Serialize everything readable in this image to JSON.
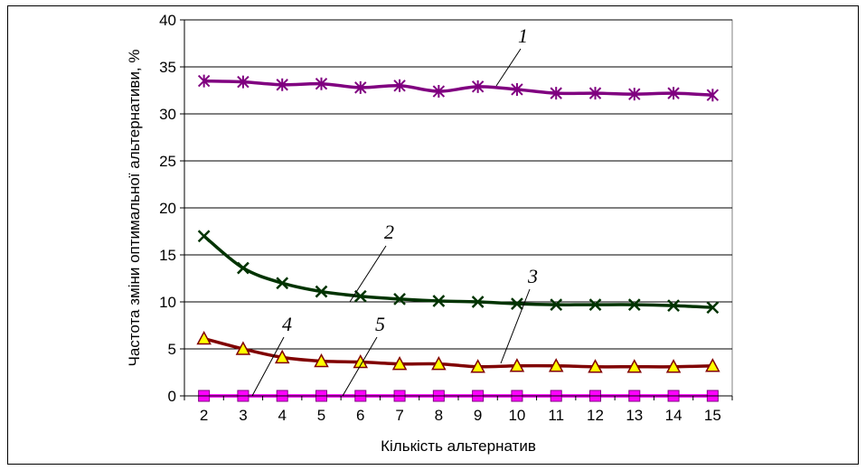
{
  "chart_data": {
    "type": "line",
    "xlabel": "Кількість альтернатив",
    "ylabel": "Частота зміни оптимальної альтернативи, %",
    "x": [
      2,
      3,
      4,
      5,
      6,
      7,
      8,
      9,
      10,
      11,
      12,
      13,
      14,
      15
    ],
    "ylim": [
      0,
      40
    ],
    "yticks": [
      0,
      5,
      10,
      15,
      20,
      25,
      30,
      35,
      40
    ],
    "grid": "horizontal",
    "legend": "none",
    "series": [
      {
        "name": "1",
        "color": "#800080",
        "marker": "asterisk",
        "values": [
          33.5,
          33.4,
          33.1,
          33.2,
          32.8,
          33.0,
          32.4,
          32.9,
          32.6,
          32.2,
          32.2,
          32.1,
          32.2,
          32.0
        ]
      },
      {
        "name": "2",
        "color": "#003300",
        "marker": "x",
        "values": [
          17.0,
          13.6,
          12.0,
          11.1,
          10.6,
          10.3,
          10.1,
          10.0,
          9.8,
          9.7,
          9.7,
          9.7,
          9.6,
          9.4
        ]
      },
      {
        "name": "3",
        "color": "#800000",
        "marker": "triangle",
        "marker_fill": "#ffff00",
        "values": [
          6.1,
          5.0,
          4.1,
          3.7,
          3.6,
          3.4,
          3.4,
          3.1,
          3.2,
          3.2,
          3.1,
          3.1,
          3.1,
          3.2
        ]
      },
      {
        "name": "4",
        "color": "#ff00ff",
        "marker": "none",
        "values": [
          0,
          0,
          0,
          0,
          0,
          0,
          0,
          0,
          0,
          0,
          0,
          0,
          0,
          0
        ]
      },
      {
        "name": "5",
        "color": "#ff00ff",
        "marker": "square",
        "values": [
          0,
          0,
          0,
          0,
          0,
          0,
          0,
          0,
          0,
          0,
          0,
          0,
          0,
          0
        ]
      }
    ],
    "annotations": [
      "1",
      "2",
      "3",
      "4",
      "5"
    ]
  }
}
